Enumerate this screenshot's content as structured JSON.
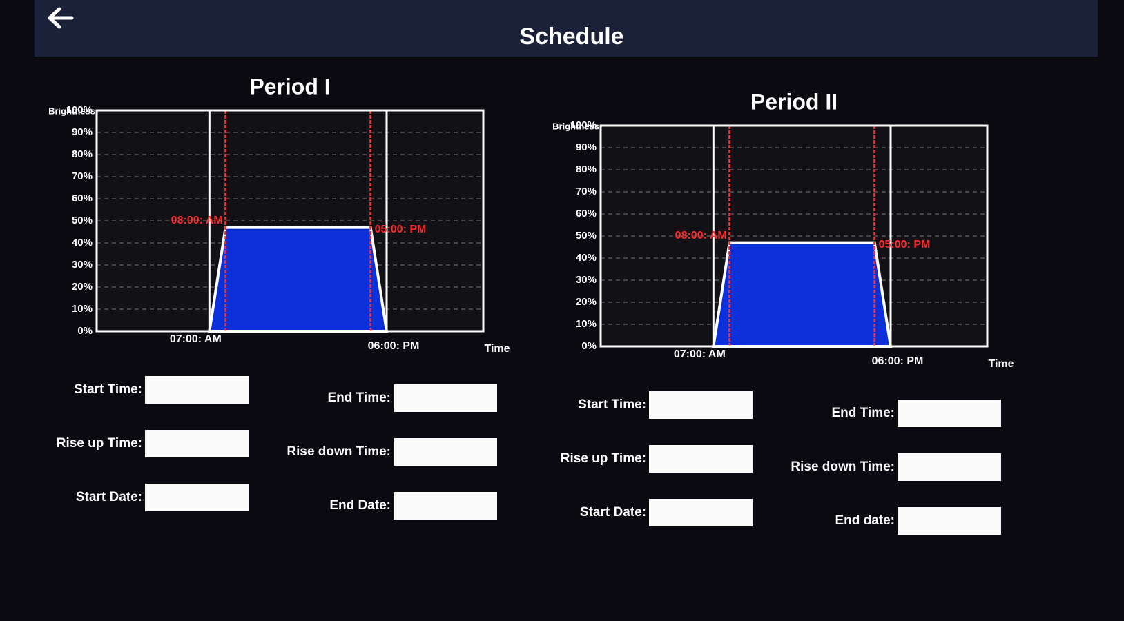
{
  "header": {
    "title": "Schedule"
  },
  "panels": [
    {
      "title": "Period I",
      "chart_data": {
        "type": "area",
        "y_label": "Brightness",
        "x_label": "Time",
        "x": [
          7,
          8,
          17,
          18
        ],
        "values": [
          0,
          47,
          47,
          0
        ],
        "color": "#0b2fd8",
        "xlim": [
          0,
          24
        ],
        "ylim": [
          0,
          100
        ],
        "xticks": [
          {
            "value": 7,
            "label": "07:00: AM"
          },
          {
            "value": 18,
            "label": "06:00: PM"
          }
        ],
        "yticks": [
          {
            "value": 0,
            "label": "0%"
          },
          {
            "value": 10,
            "label": "10%"
          },
          {
            "value": 20,
            "label": "20%"
          },
          {
            "value": 30,
            "label": "30%"
          },
          {
            "value": 40,
            "label": "40%"
          },
          {
            "value": 50,
            "label": "50%"
          },
          {
            "value": 60,
            "label": "60%"
          },
          {
            "value": 70,
            "label": "70%"
          },
          {
            "value": 80,
            "label": "80%"
          },
          {
            "value": 90,
            "label": "90%"
          },
          {
            "value": 100,
            "label": "100%"
          }
        ],
        "annotations": [
          {
            "x": 8,
            "label": "08:00: AM"
          },
          {
            "x": 17,
            "label": "05:00: PM"
          }
        ],
        "grid": true
      },
      "fields": [
        "Start Time:",
        "End Time:",
        "Rise up Time:",
        "Rise down Time:",
        "Start Date:",
        "End Date:"
      ]
    },
    {
      "title": "Period II",
      "chart_data": {
        "type": "area",
        "y_label": "Brightness",
        "x_label": "Time",
        "x": [
          7,
          8,
          17,
          18
        ],
        "values": [
          0,
          47,
          47,
          0
        ],
        "color": "#0b2fd8",
        "xlim": [
          0,
          24
        ],
        "ylim": [
          0,
          100
        ],
        "xticks": [
          {
            "value": 7,
            "label": "07:00: AM"
          },
          {
            "value": 18,
            "label": "06:00: PM"
          }
        ],
        "yticks": [
          {
            "value": 0,
            "label": "0%"
          },
          {
            "value": 10,
            "label": "10%"
          },
          {
            "value": 20,
            "label": "20%"
          },
          {
            "value": 30,
            "label": "30%"
          },
          {
            "value": 40,
            "label": "40%"
          },
          {
            "value": 50,
            "label": "50%"
          },
          {
            "value": 60,
            "label": "60%"
          },
          {
            "value": 70,
            "label": "70%"
          },
          {
            "value": 80,
            "label": "80%"
          },
          {
            "value": 90,
            "label": "90%"
          },
          {
            "value": 100,
            "label": "100%"
          }
        ],
        "annotations": [
          {
            "x": 8,
            "label": "08:00: AM"
          },
          {
            "x": 17,
            "label": "05:00: PM"
          }
        ],
        "grid": true
      },
      "fields": [
        "Start Time:",
        "End Time:",
        "Rise up Time:",
        "Rise down Time:",
        "Start Date:",
        "End date:"
      ]
    }
  ]
}
